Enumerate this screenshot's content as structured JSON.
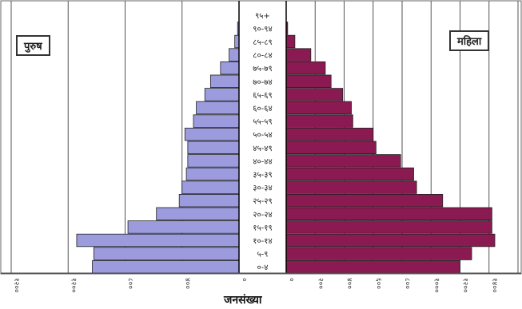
{
  "chart_data": {
    "type": "bar",
    "orientation": "horizontal",
    "subtype": "population-pyramid",
    "categories": [
      "०-४",
      "५-९",
      "१०-१४",
      "१५-१९",
      "२०-२४",
      "२५-२९",
      "३०-३४",
      "३५-३९",
      "४०-४४",
      "४५-४९",
      "५०-५४",
      "५५-५९",
      "६०-६४",
      "६५-६९",
      "७०-७४",
      "७५-७९",
      "८०-८४",
      "८५-८९",
      "९०-९४",
      "९५+"
    ],
    "series": [
      {
        "name": "पुरुष",
        "color": "#9b9bde",
        "values": [
          1030,
          1020,
          1140,
          780,
          580,
          420,
          400,
          370,
          360,
          360,
          380,
          320,
          300,
          240,
          200,
          130,
          70,
          30,
          10,
          0
        ]
      },
      {
        "name": "महिला",
        "color": "#8b1a52",
        "values": [
          1200,
          1280,
          1440,
          1420,
          1420,
          1080,
          900,
          880,
          790,
          620,
          600,
          460,
          450,
          390,
          310,
          270,
          170,
          60,
          10,
          0
        ]
      }
    ],
    "xlabel": "जनसंख्या",
    "left_ticks": [
      "१२००",
      "१२००",
      "८००",
      "४००",
      "०"
    ],
    "right_ticks": [
      "०",
      "२००",
      "४००",
      "६००",
      "८००",
      "१०००",
      "१२००",
      "१४००"
    ],
    "grid": true
  },
  "legend": {
    "male": "पुरुष",
    "female": "महिला"
  }
}
